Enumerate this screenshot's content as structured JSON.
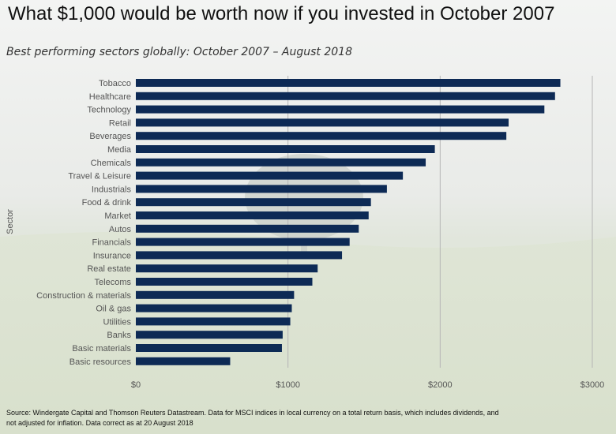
{
  "title": "What $1,000 would be worth now if you invested in October 2007",
  "subtitle": "Best performing sectors globally: October 2007 – August 2018",
  "footnote": {
    "line1": "Source: Windergate Capital and Thomson Reuters Datastream. Data for MSCI indices in local currency on a total return basis, which includes dividends, and",
    "line2": "not adjusted for inflation. Data correct as at 20 August 2018"
  },
  "colors": {
    "bar": "#0d2a55",
    "axis_text": "#555555",
    "grid": "#b5b5b5"
  },
  "chart_data": {
    "type": "bar",
    "orientation": "horizontal",
    "ylabel": "Sector",
    "xlim": [
      0,
      3000
    ],
    "xticks": [
      0,
      1000,
      2000,
      3000
    ],
    "xtick_labels": [
      "$0",
      "$1000",
      "$2000",
      "$3000"
    ],
    "grid": true,
    "categories": [
      "Tobacco",
      "Healthcare",
      "Technology",
      "Retail",
      "Beverages",
      "Media",
      "Chemicals",
      "Travel & Leisure",
      "Industrials",
      "Food & drink",
      "Market",
      "Autos",
      "Financials",
      "Insurance",
      "Real estate",
      "Telecoms",
      "Construction & materials",
      "Oil & gas",
      "Utilities",
      "Banks",
      "Basic materials",
      "Basic resources"
    ],
    "values": [
      2790,
      2755,
      2685,
      2450,
      2435,
      1965,
      1905,
      1755,
      1650,
      1545,
      1530,
      1465,
      1405,
      1355,
      1195,
      1160,
      1040,
      1025,
      1015,
      965,
      960,
      620
    ]
  }
}
